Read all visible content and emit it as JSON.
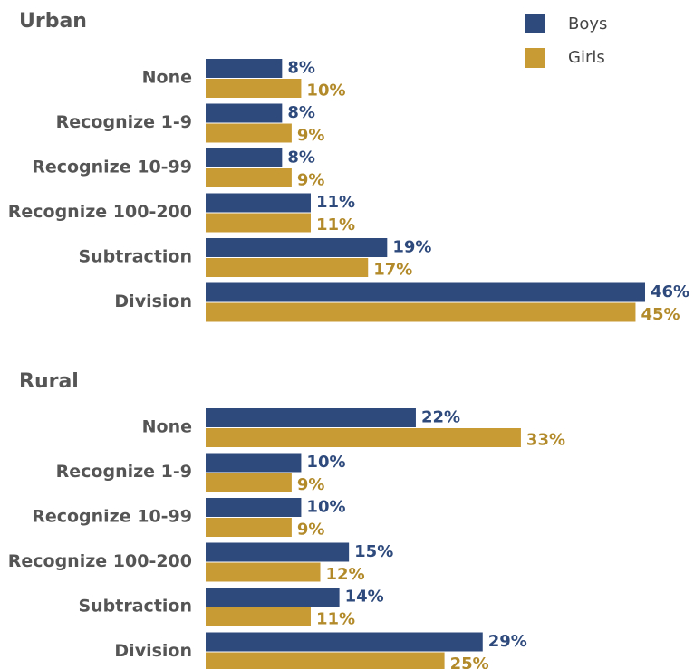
{
  "chart_data": [
    {
      "type": "hbar",
      "title": "Urban",
      "categories": [
        "None",
        "Recognize 1-9",
        "Recognize 10-99",
        "Recognize 100-200",
        "Subtraction",
        "Division"
      ],
      "series": [
        {
          "name": "Boys",
          "color": "#2e4a7d",
          "values": [
            8,
            8,
            8,
            11,
            19,
            46
          ],
          "value_labels": [
            "8%",
            "8%",
            "8%",
            "11%",
            "19%",
            "46%"
          ]
        },
        {
          "name": "Girls",
          "color": "#c89b35",
          "values": [
            10,
            9,
            9,
            11,
            17,
            45
          ],
          "value_labels": [
            "10%",
            "9%",
            "9%",
            "11%",
            "17%",
            "45%"
          ]
        }
      ]
    },
    {
      "type": "hbar",
      "title": "Rural",
      "categories": [
        "None",
        "Recognize 1-9",
        "Recognize 10-99",
        "Recognize 100-200",
        "Subtraction",
        "Division"
      ],
      "series": [
        {
          "name": "Boys",
          "color": "#2e4a7d",
          "values": [
            22,
            10,
            10,
            15,
            14,
            29
          ],
          "value_labels": [
            "22%",
            "10%",
            "10%",
            "15%",
            "14%",
            "29%"
          ]
        },
        {
          "name": "Girls",
          "color": "#c89b35",
          "values": [
            33,
            9,
            9,
            12,
            11,
            25
          ],
          "value_labels": [
            "33%",
            "9%",
            "9%",
            "12%",
            "11%",
            "25%"
          ]
        }
      ]
    }
  ]
}
